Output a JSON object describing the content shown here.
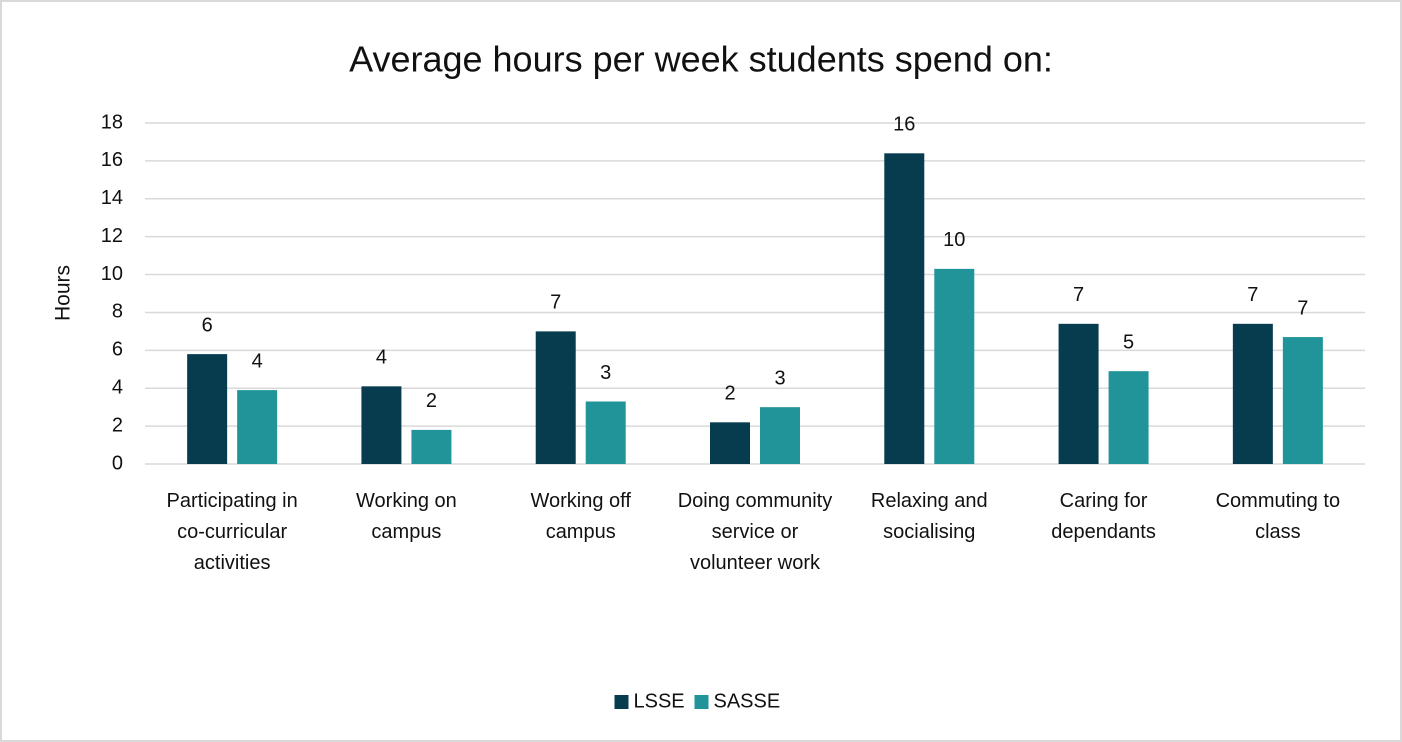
{
  "chart_data": {
    "type": "bar",
    "title": "Average hours per week students spend on:",
    "y_label": "Hours",
    "categories": [
      "Participating in co-curricular activities",
      "Working on campus",
      "Working off campus",
      "Doing community service or volunteer work",
      "Relaxing and socialising",
      "Caring for dependants",
      "Commuting to class"
    ],
    "series": [
      {
        "name": "LSSE",
        "color": "#073c4f",
        "values": [
          5.8,
          4.1,
          7.0,
          2.2,
          16.4,
          7.4,
          7.4
        ],
        "value_labels": [
          "6",
          "4",
          "7",
          "2",
          "16",
          "7",
          "7"
        ]
      },
      {
        "name": "SASSE",
        "color": "#21949a",
        "values": [
          3.9,
          1.8,
          3.3,
          3.0,
          10.3,
          4.9,
          6.7
        ],
        "value_labels": [
          "4",
          "2",
          "3",
          "3",
          "10",
          "5",
          "7"
        ]
      }
    ],
    "ylim": [
      0,
      18
    ],
    "yticks": [
      0,
      2,
      4,
      6,
      8,
      10,
      12,
      14,
      16,
      18
    ],
    "grid": true,
    "legend": "bottom"
  }
}
